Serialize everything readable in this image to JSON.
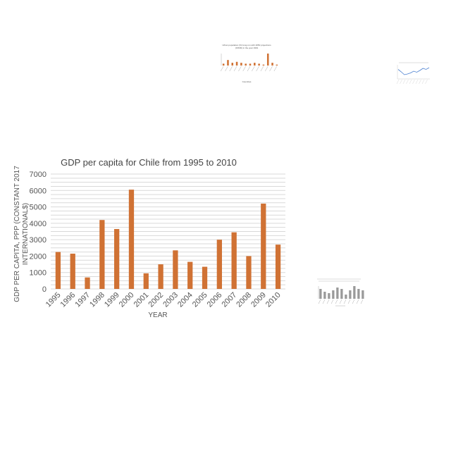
{
  "thumbnails": [
    {
      "title": "Urban population (%) long-run with 2050 projections (OWID) in the year 1991",
      "xlabel": "Countries",
      "values": [
        2,
        6,
        3,
        4,
        3,
        2,
        2,
        3,
        2,
        1,
        13,
        3,
        1
      ],
      "color": "#d07234"
    },
    {
      "title": "GDP per capita line chart",
      "values": [
        55,
        48,
        40,
        42,
        45,
        50,
        47,
        52,
        58,
        55,
        60
      ],
      "color": "#4a7fd0"
    },
    {
      "title": "Unknown chart 1995-2010 (bar)",
      "values": [
        7,
        5,
        4,
        6,
        8,
        7,
        3,
        6,
        9,
        7,
        6
      ],
      "color": "#9a9a9a"
    }
  ],
  "chart_data": {
    "type": "bar",
    "title": "GDP per capita for Chile from 1995 to 2010",
    "xlabel": "YEAR",
    "ylabel_line1": "GDP PER CAPITA, PPP (CONSTANT 2017",
    "ylabel_line2": "INTERNATIONAL$)",
    "categories": [
      "1995",
      "1996",
      "1997",
      "1998",
      "1999",
      "2000",
      "2001",
      "2002",
      "2003",
      "2004",
      "2005",
      "2006",
      "2007",
      "2008",
      "2009",
      "2010"
    ],
    "values": [
      2250,
      2150,
      700,
      4200,
      3650,
      6050,
      950,
      1500,
      2350,
      1650,
      1350,
      3000,
      3450,
      2000,
      5200,
      2700
    ],
    "ylim": [
      0,
      7000
    ],
    "yticks": [
      0,
      1000,
      2000,
      3000,
      4000,
      5000,
      6000,
      7000
    ],
    "color": "#d07234"
  }
}
